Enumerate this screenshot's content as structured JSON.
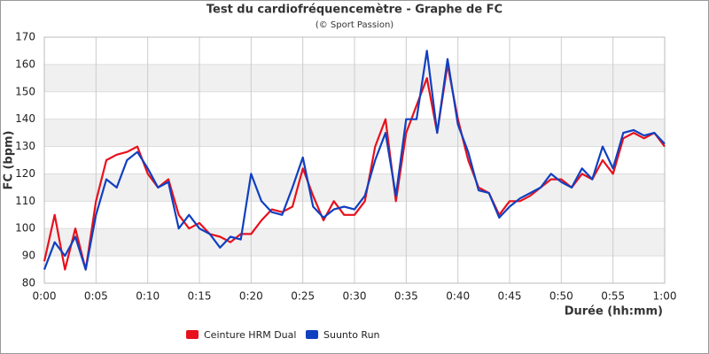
{
  "chart_data": {
    "type": "line",
    "title": "Test du cardiofréquencemètre - Graphe de FC",
    "subtitle": "(© Sport Passion)",
    "x_label": "Durée (hh:mm)",
    "y_label": "FC (bpm)",
    "x": [
      0,
      1,
      2,
      3,
      4,
      5,
      6,
      7,
      8,
      9,
      10,
      11,
      12,
      13,
      14,
      15,
      16,
      17,
      18,
      19,
      20,
      21,
      22,
      23,
      24,
      25,
      26,
      27,
      28,
      29,
      30,
      31,
      32,
      33,
      34,
      35,
      36,
      37,
      38,
      39,
      40,
      41,
      42,
      43,
      44,
      45,
      46,
      47,
      48,
      49,
      50,
      51,
      52,
      53,
      54,
      55,
      56,
      57,
      58,
      59,
      60
    ],
    "series": [
      {
        "name": "Ceinture HRM Dual",
        "color": "#e8101c",
        "values": [
          88,
          105,
          85,
          100,
          85,
          110,
          125,
          127,
          128,
          130,
          120,
          115,
          118,
          105,
          100,
          102,
          98,
          97,
          95,
          98,
          98,
          103,
          107,
          106,
          108,
          122,
          112,
          103,
          110,
          105,
          105,
          110,
          130,
          140,
          110,
          135,
          145,
          155,
          135,
          160,
          140,
          125,
          115,
          113,
          105,
          110,
          110,
          112,
          115,
          118,
          118,
          115,
          120,
          118,
          125,
          120,
          133,
          135,
          133,
          135,
          130
        ]
      },
      {
        "name": "Suunto Run",
        "color": "#1040c0",
        "values": [
          85,
          95,
          90,
          97,
          85,
          105,
          118,
          115,
          125,
          128,
          122,
          115,
          117,
          100,
          105,
          100,
          98,
          93,
          97,
          96,
          120,
          110,
          106,
          105,
          115,
          126,
          108,
          104,
          107,
          108,
          107,
          112,
          125,
          135,
          112,
          140,
          140,
          165,
          135,
          162,
          138,
          128,
          114,
          113,
          104,
          108,
          111,
          113,
          115,
          120,
          117,
          115,
          122,
          118,
          130,
          122,
          135,
          136,
          134,
          135,
          131
        ]
      }
    ],
    "xlim": [
      0,
      60
    ],
    "xticks": [
      {
        "value": 0,
        "label": "0:00"
      },
      {
        "value": 5,
        "label": "0:05"
      },
      {
        "value": 10,
        "label": "0:10"
      },
      {
        "value": 15,
        "label": "0:15"
      },
      {
        "value": 20,
        "label": "0:20"
      },
      {
        "value": 25,
        "label": "0:25"
      },
      {
        "value": 30,
        "label": "0:30"
      },
      {
        "value": 35,
        "label": "0:35"
      },
      {
        "value": 40,
        "label": "0:40"
      },
      {
        "value": 45,
        "label": "0:45"
      },
      {
        "value": 50,
        "label": "0:50"
      },
      {
        "value": 55,
        "label": "0:55"
      },
      {
        "value": 60,
        "label": "1:00"
      }
    ],
    "ylim": [
      80,
      170
    ],
    "yticks": [
      80,
      90,
      100,
      110,
      120,
      130,
      140,
      150,
      160,
      170
    ],
    "grid": true,
    "legend": "bottom"
  }
}
